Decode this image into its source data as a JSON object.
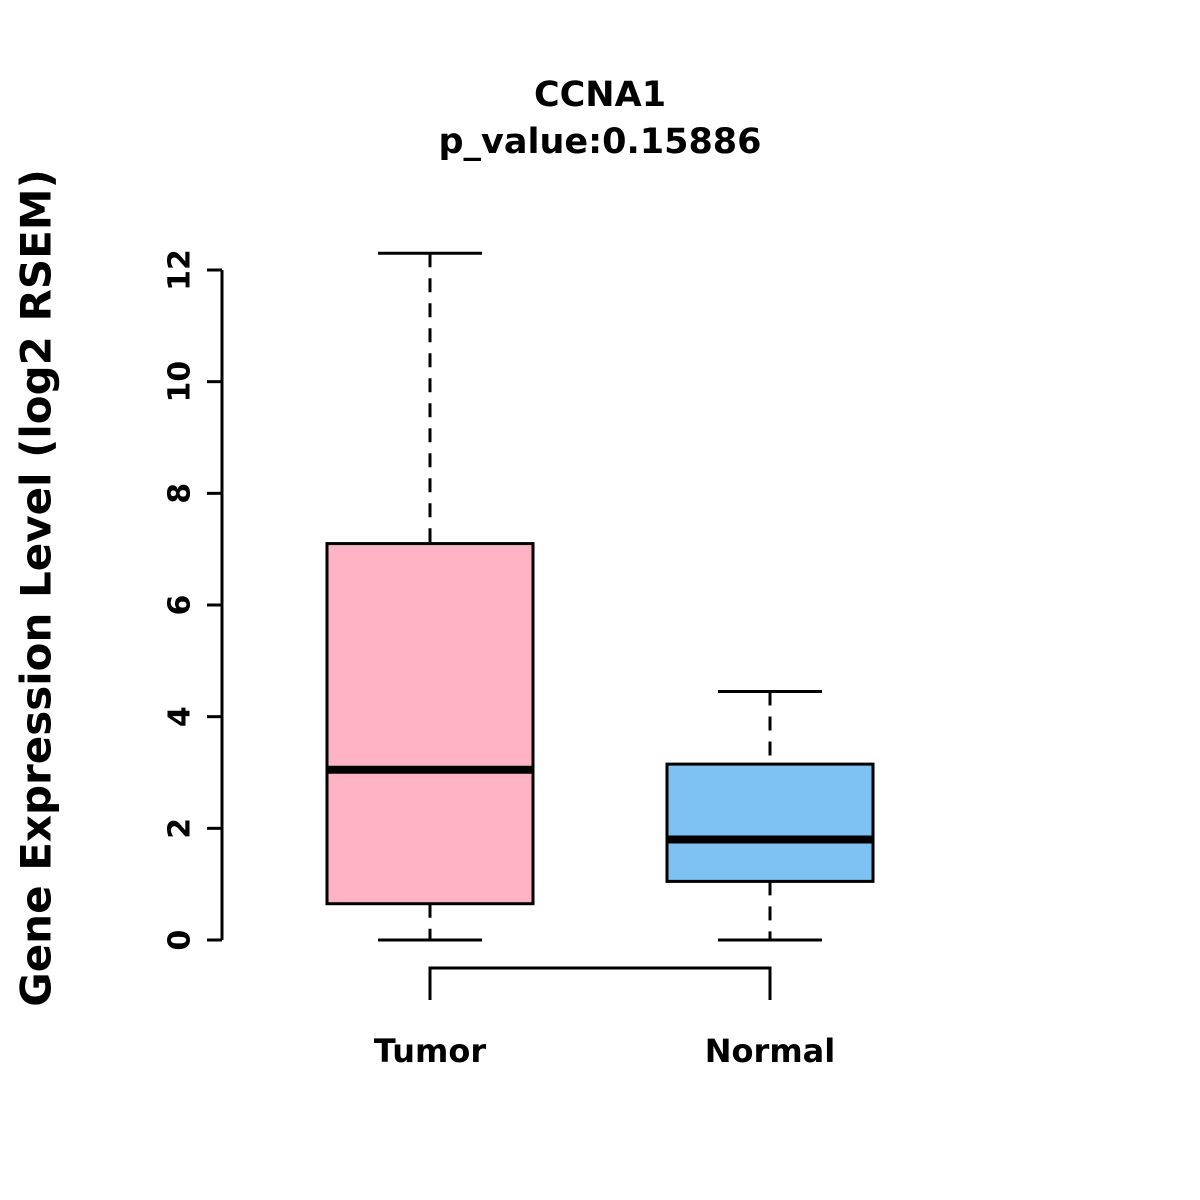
{
  "title": "CCNA1",
  "subtitle": "p_value:0.15886",
  "ylabel": "Gene Expression Level (log2 RSEM)",
  "chart_data": {
    "type": "boxplot",
    "title": "CCNA1",
    "subtitle": "p_value:0.15886",
    "ylabel": "Gene Expression Level (log2 RSEM)",
    "xlabel": "",
    "categories": [
      "Tumor",
      "Normal"
    ],
    "series": [
      {
        "name": "Tumor",
        "min": 0,
        "q1": 0.65,
        "median": 3.05,
        "q3": 7.1,
        "max": 12.3,
        "color": "#FFB3C5"
      },
      {
        "name": "Normal",
        "min": 0,
        "q1": 1.05,
        "median": 1.8,
        "q3": 3.15,
        "max": 4.45,
        "color": "#7EC2F3"
      }
    ],
    "yticks": [
      0,
      2,
      4,
      6,
      8,
      10,
      12
    ],
    "ylim": [
      0,
      12.4
    ],
    "grid": false,
    "legend": "none",
    "annotations": [
      "comparison bracket between Tumor and Normal below axis"
    ]
  },
  "style": {
    "axis_color": "#000000",
    "box_stroke": "#000000",
    "median_color": "#000000",
    "text_color": "#000000",
    "background": "#ffffff"
  }
}
